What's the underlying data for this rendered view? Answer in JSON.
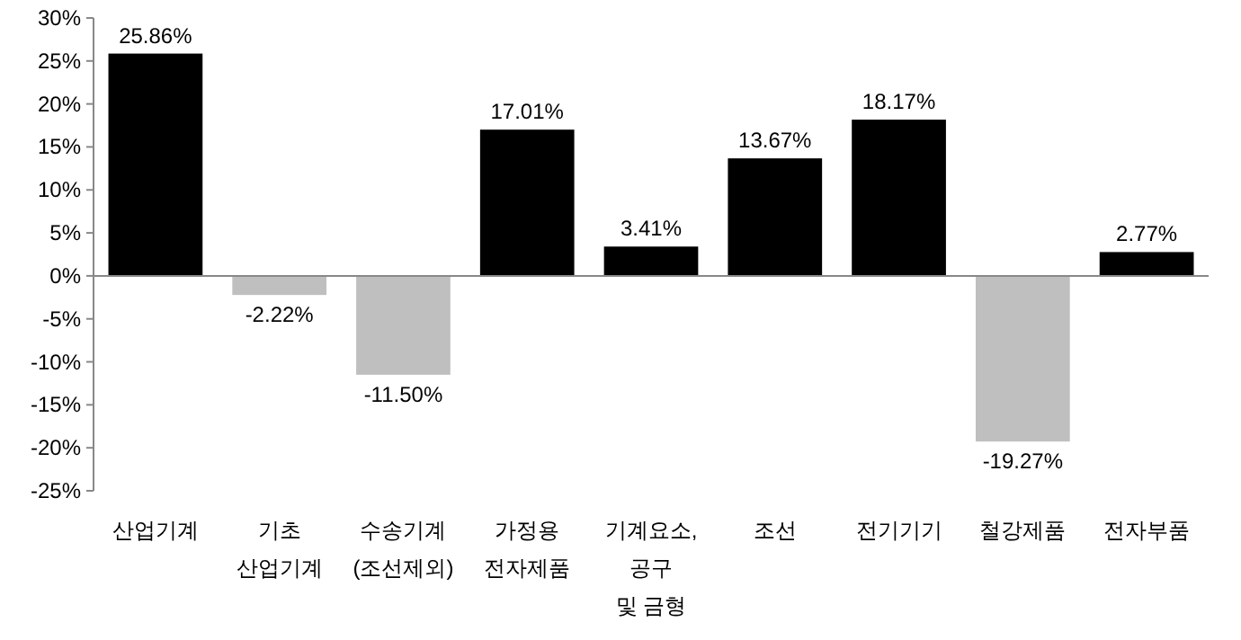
{
  "chart_data": {
    "type": "bar",
    "categories": [
      "산업기계",
      "기초\n산업기계",
      "수송기계\n(조선제외)",
      "가정용\n전자제품",
      "기계요소,\n공구\n및 금형",
      "조선",
      "전기기기",
      "철강제품",
      "전자부품"
    ],
    "values": [
      25.86,
      -2.22,
      -11.5,
      17.01,
      3.41,
      13.67,
      18.17,
      -19.27,
      2.77
    ],
    "value_labels": [
      "25.86%",
      "-2.22%",
      "-11.50%",
      "17.01%",
      "3.41%",
      "13.67%",
      "18.17%",
      "-19.27%",
      "2.77%"
    ],
    "colors": [
      "#000000",
      "#bfbfbf",
      "#bfbfbf",
      "#000000",
      "#000000",
      "#000000",
      "#000000",
      "#bfbfbf",
      "#000000"
    ],
    "ylim": [
      -25,
      30
    ],
    "yticks": [
      {
        "value": -25,
        "label": "-25%"
      },
      {
        "value": -20,
        "label": "-20%"
      },
      {
        "value": -15,
        "label": "-15%"
      },
      {
        "value": -10,
        "label": "-10%"
      },
      {
        "value": -5,
        "label": "-5%"
      },
      {
        "value": 0,
        "label": "0%"
      },
      {
        "value": 5,
        "label": "5%"
      },
      {
        "value": 10,
        "label": "10%"
      },
      {
        "value": 15,
        "label": "15%"
      },
      {
        "value": 20,
        "label": "20%"
      },
      {
        "value": 25,
        "label": "25%"
      },
      {
        "value": 30,
        "label": "30%"
      }
    ]
  }
}
